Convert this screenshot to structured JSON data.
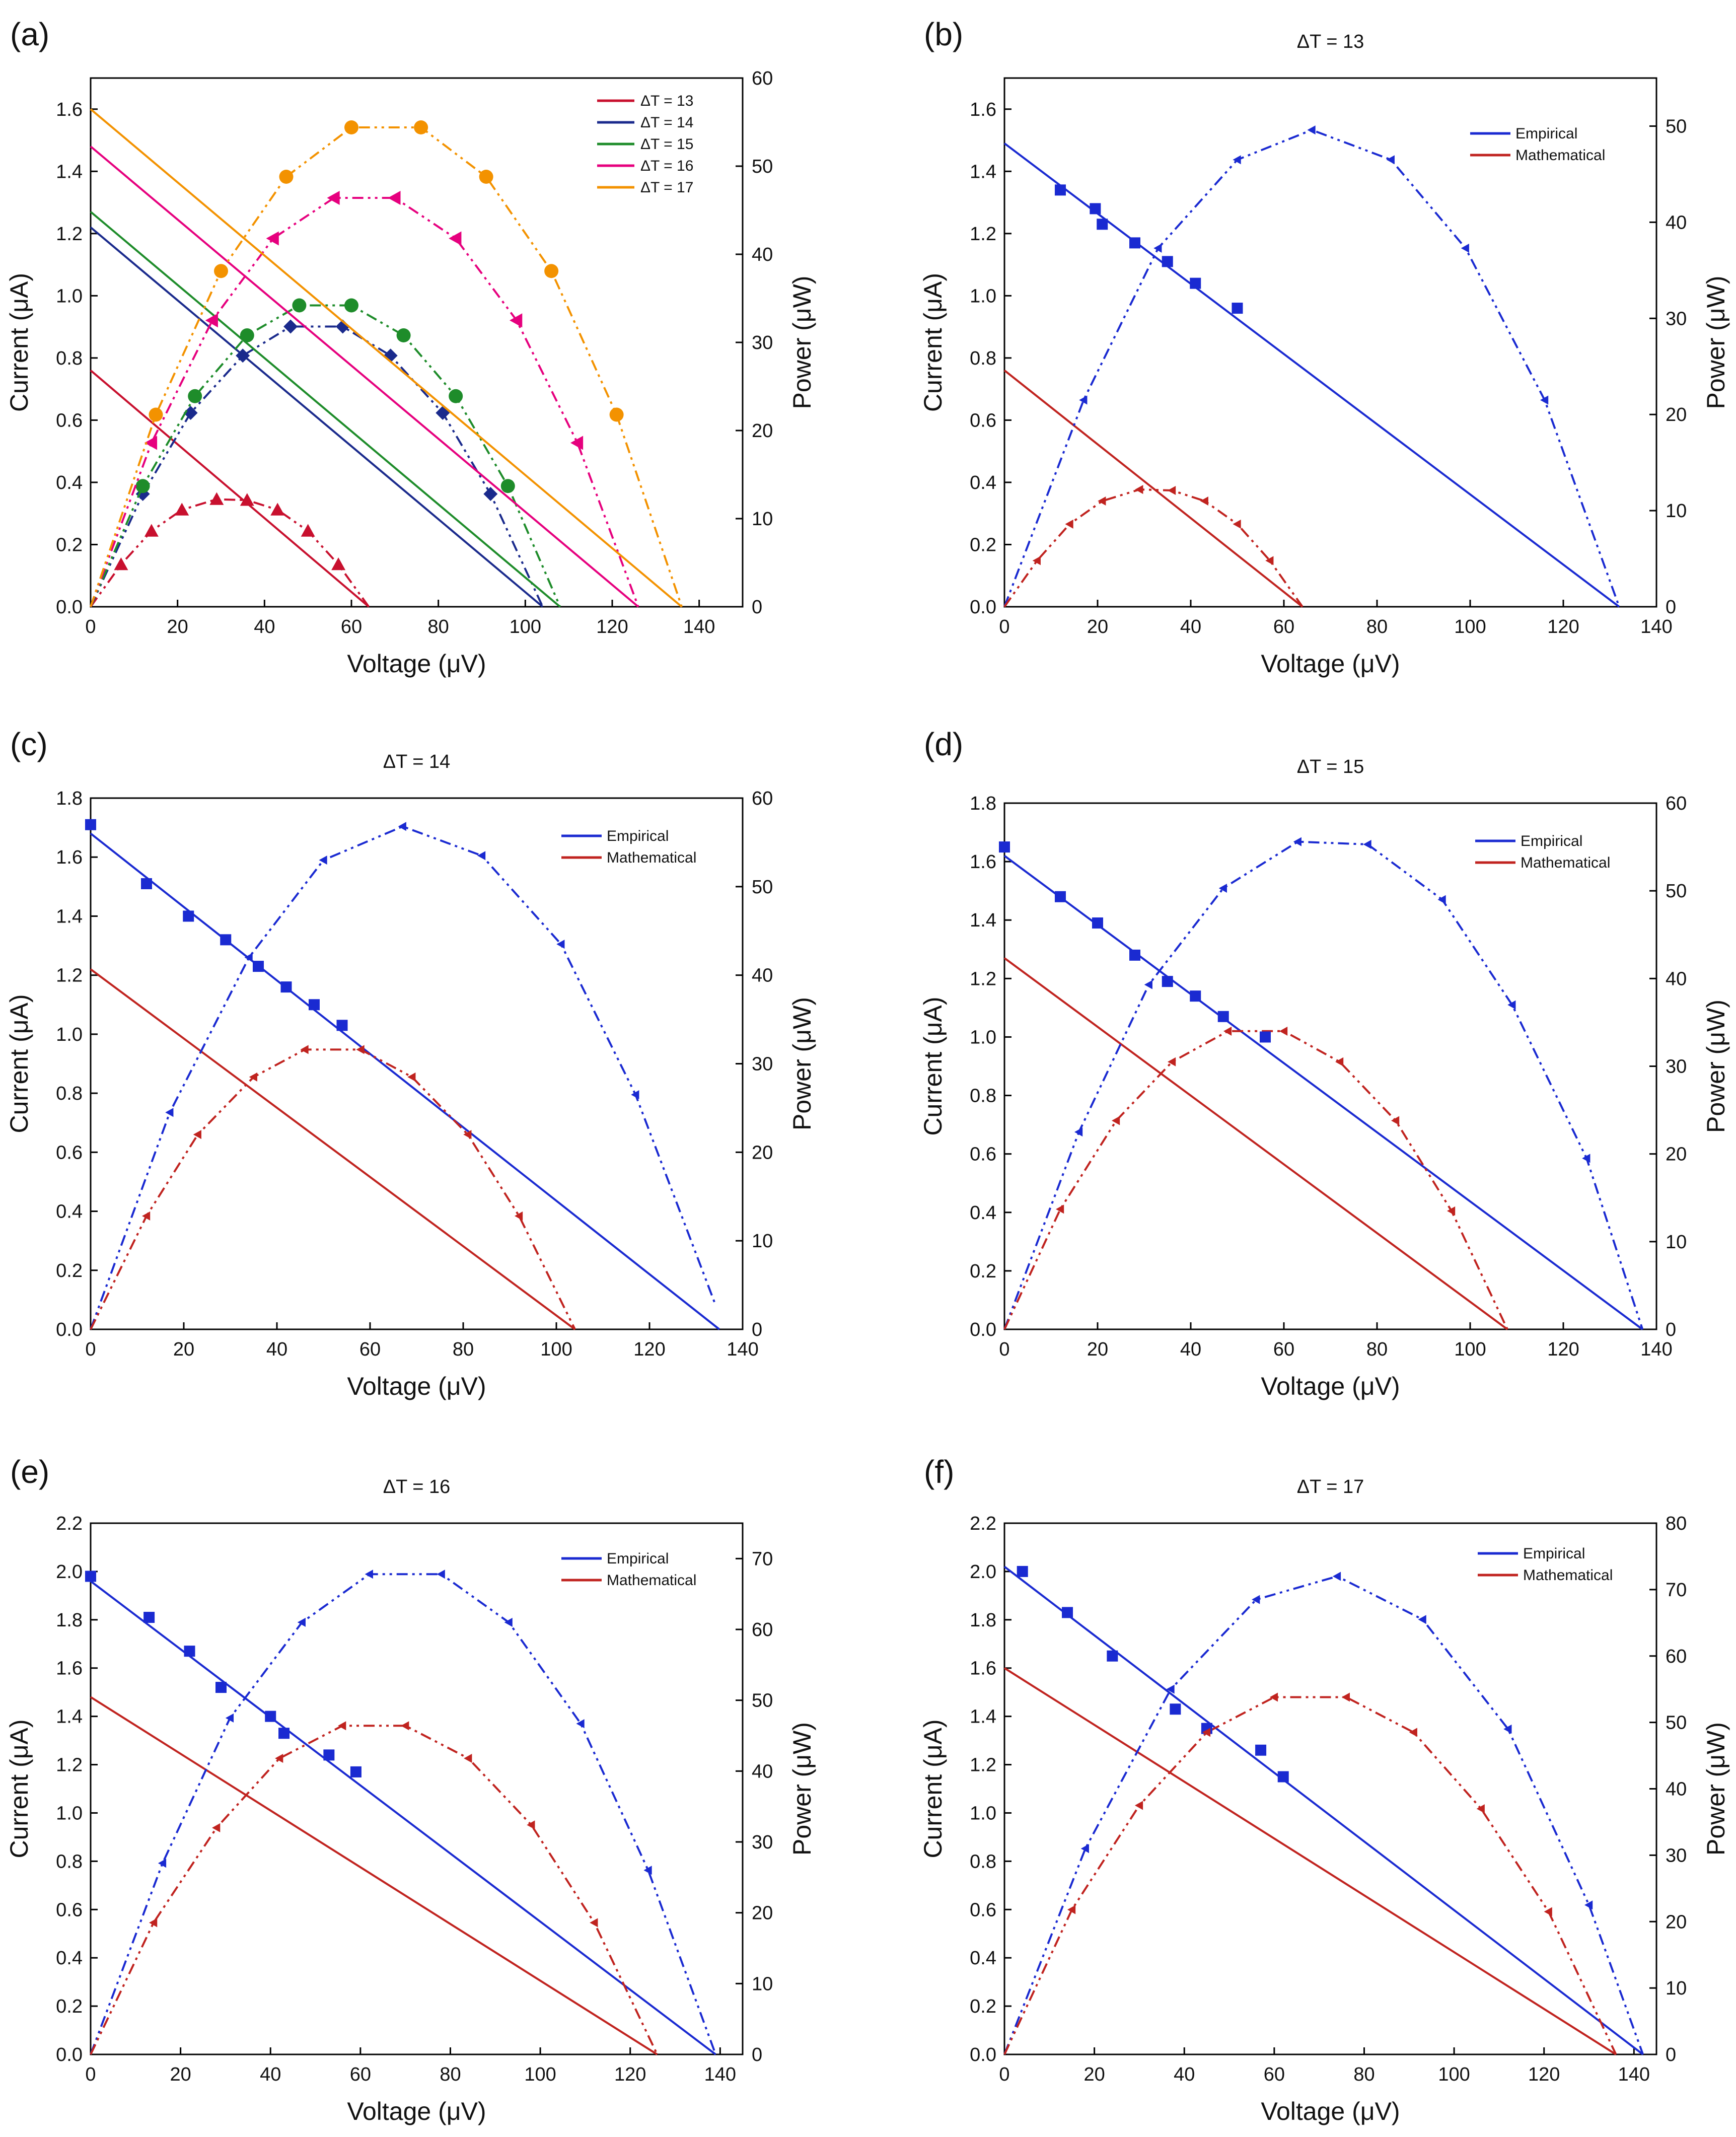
{
  "figure": {
    "panel_a": {
      "letter": "(a)",
      "xlabel": "Voltage (μV)",
      "ylabel_left": "Current (μA)",
      "ylabel_right": "Power (μW)",
      "xticks": [
        "0",
        "20",
        "40",
        "60",
        "80",
        "100",
        "120",
        "140"
      ],
      "yticks_left": [
        "0.0",
        "0.2",
        "0.4",
        "0.6",
        "0.8",
        "1.0",
        "1.2",
        "1.4",
        "1.6"
      ],
      "yticks_right": [
        "0",
        "10",
        "20",
        "30",
        "40",
        "50",
        "60"
      ],
      "legend": [
        "ΔT = 13",
        "ΔT = 14",
        "ΔT = 15",
        "ΔT = 16",
        "ΔT = 17"
      ]
    },
    "panel_b": {
      "letter": "(b)",
      "title": "ΔT = 13",
      "xlabel": "Voltage (μV)",
      "ylabel_left": "Current (μA)",
      "ylabel_right": "Power (μW)",
      "xticks": [
        "0",
        "20",
        "40",
        "60",
        "80",
        "100",
        "120",
        "140"
      ],
      "yticks_left": [
        "0.0",
        "0.2",
        "0.4",
        "0.6",
        "0.8",
        "1.0",
        "1.2",
        "1.4",
        "1.6"
      ],
      "yticks_right": [
        "0",
        "10",
        "20",
        "30",
        "40",
        "50"
      ],
      "legend": [
        "Empirical",
        "Mathematical"
      ]
    },
    "panel_c": {
      "letter": "(c)",
      "title": "ΔT = 14",
      "xlabel": "Voltage (μV)",
      "ylabel_left": "Current (μA)",
      "ylabel_right": "Power (μW)",
      "xticks": [
        "0",
        "20",
        "40",
        "60",
        "80",
        "100",
        "120",
        "140"
      ],
      "yticks_left": [
        "0.0",
        "0.2",
        "0.4",
        "0.6",
        "0.8",
        "1.0",
        "1.2",
        "1.4",
        "1.6",
        "1.8"
      ],
      "yticks_right": [
        "0",
        "10",
        "20",
        "30",
        "40",
        "50",
        "60"
      ],
      "legend": [
        "Empirical",
        "Mathematical"
      ]
    },
    "panel_d": {
      "letter": "(d)",
      "title": "ΔT = 15",
      "xlabel": "Voltage (μV)",
      "ylabel_left": "Current (μA)",
      "ylabel_right": "Power (μW)",
      "xticks": [
        "0",
        "20",
        "40",
        "60",
        "80",
        "100",
        "120",
        "140"
      ],
      "yticks_left": [
        "0.0",
        "0.2",
        "0.4",
        "0.6",
        "0.8",
        "1.0",
        "1.2",
        "1.4",
        "1.6",
        "1.8"
      ],
      "yticks_right": [
        "0",
        "10",
        "20",
        "30",
        "40",
        "50",
        "60"
      ],
      "legend": [
        "Empirical",
        "Mathematical"
      ]
    },
    "panel_e": {
      "letter": "(e)",
      "title": "ΔT = 16",
      "xlabel": "Voltage (μV)",
      "ylabel_left": "Current (μA)",
      "ylabel_right": "Power (μW)",
      "xticks": [
        "0",
        "20",
        "40",
        "60",
        "80",
        "100",
        "120",
        "140"
      ],
      "yticks_left": [
        "0.0",
        "0.2",
        "0.4",
        "0.6",
        "0.8",
        "1.0",
        "1.2",
        "1.4",
        "1.6",
        "1.8",
        "2.0",
        "2.2"
      ],
      "yticks_right": [
        "0",
        "10",
        "20",
        "30",
        "40",
        "50",
        "60",
        "70"
      ],
      "legend": [
        "Empirical",
        "Mathematical"
      ]
    },
    "panel_f": {
      "letter": "(f)",
      "title": "ΔT = 17",
      "xlabel": "Voltage (μV)",
      "ylabel_left": "Current (μA)",
      "ylabel_right": "Power (μW)",
      "xticks": [
        "0",
        "20",
        "40",
        "60",
        "80",
        "100",
        "120",
        "140"
      ],
      "yticks_left": [
        "0.0",
        "0.2",
        "0.4",
        "0.6",
        "0.8",
        "1.0",
        "1.2",
        "1.4",
        "1.6",
        "1.8",
        "2.0",
        "2.2"
      ],
      "yticks_right": [
        "0",
        "10",
        "20",
        "30",
        "40",
        "50",
        "60",
        "70",
        "80"
      ],
      "legend": [
        "Empirical",
        "Mathematical"
      ]
    }
  },
  "chart_data": [
    {
      "panel": "a",
      "type": "line",
      "xlim": [
        0,
        150
      ],
      "ylim": [
        0,
        1.7
      ],
      "y2lim": [
        0,
        60
      ],
      "series": [
        {
          "name": "ΔT = 13",
          "color": "#c8102e",
          "current_line": [
            [
              0,
              0.76
            ],
            [
              64,
              0
            ]
          ],
          "power": [
            [
              0,
              0
            ],
            [
              7,
              4.8
            ],
            [
              14,
              8.6
            ],
            [
              21,
              11
            ],
            [
              29,
              12.2
            ],
            [
              36,
              12.1
            ],
            [
              43,
              11
            ],
            [
              50,
              8.6
            ],
            [
              57,
              4.8
            ],
            [
              64,
              0
            ]
          ]
        },
        {
          "name": "ΔT = 14",
          "color": "#1a2a8c",
          "current_line": [
            [
              0,
              1.22
            ],
            [
              104,
              0
            ]
          ],
          "power": [
            [
              0,
              0
            ],
            [
              12,
              12.8
            ],
            [
              23,
              22
            ],
            [
              35,
              28.5
            ],
            [
              46,
              31.8
            ],
            [
              58,
              31.8
            ],
            [
              69,
              28.5
            ],
            [
              81,
              22
            ],
            [
              92,
              12.8
            ],
            [
              104,
              0
            ]
          ]
        },
        {
          "name": "ΔT = 15",
          "color": "#1e8c2a",
          "current_line": [
            [
              0,
              1.27
            ],
            [
              108,
              0
            ]
          ],
          "power": [
            [
              0,
              0
            ],
            [
              12,
              13.7
            ],
            [
              24,
              23.9
            ],
            [
              36,
              30.8
            ],
            [
              48,
              34.2
            ],
            [
              60,
              34.2
            ],
            [
              72,
              30.8
            ],
            [
              84,
              23.9
            ],
            [
              96,
              13.7
            ],
            [
              108,
              0
            ]
          ]
        },
        {
          "name": "ΔT = 16",
          "color": "#e6007e",
          "current_line": [
            [
              0,
              1.48
            ],
            [
              126,
              0
            ]
          ],
          "power": [
            [
              0,
              0
            ],
            [
              14,
              18.6
            ],
            [
              28,
              32.5
            ],
            [
              42,
              41.8
            ],
            [
              56,
              46.4
            ],
            [
              70,
              46.4
            ],
            [
              84,
              41.8
            ],
            [
              98,
              32.5
            ],
            [
              112,
              18.6
            ],
            [
              126,
              0
            ]
          ]
        },
        {
          "name": "ΔT = 17",
          "color": "#f39200",
          "current_line": [
            [
              0,
              1.6
            ],
            [
              136,
              0
            ]
          ],
          "power": [
            [
              0,
              0
            ],
            [
              15,
              21.8
            ],
            [
              30,
              38.1
            ],
            [
              45,
              48.8
            ],
            [
              60,
              54.4
            ],
            [
              76,
              54.4
            ],
            [
              91,
              48.8
            ],
            [
              106,
              38.1
            ],
            [
              121,
              21.8
            ],
            [
              136,
              0
            ]
          ]
        }
      ]
    },
    {
      "panel": "b",
      "type": "line",
      "xlim": [
        0,
        140
      ],
      "ylim": [
        0,
        1.7
      ],
      "y2lim": [
        0,
        55
      ],
      "empirical_points": [
        [
          12,
          1.34
        ],
        [
          19.5,
          1.28
        ],
        [
          21,
          1.23
        ],
        [
          28,
          1.17
        ],
        [
          35,
          1.11
        ],
        [
          41,
          1.04
        ],
        [
          50,
          0.96
        ]
      ],
      "empirical_line": [
        [
          0,
          1.49
        ],
        [
          132,
          0
        ]
      ],
      "mathematical_line": [
        [
          0,
          0.76
        ],
        [
          64,
          0
        ]
      ],
      "empirical_power": [
        [
          0,
          0
        ],
        [
          17,
          21.5
        ],
        [
          33,
          37.3
        ],
        [
          50,
          46.5
        ],
        [
          66,
          49.6
        ],
        [
          83,
          46.5
        ],
        [
          99,
          37.3
        ],
        [
          116,
          21.5
        ],
        [
          132,
          0
        ]
      ],
      "mathematical_power": [
        [
          0,
          0
        ],
        [
          7,
          4.8
        ],
        [
          14,
          8.6
        ],
        [
          21,
          11
        ],
        [
          29,
          12.2
        ],
        [
          36,
          12.1
        ],
        [
          43,
          11
        ],
        [
          50,
          8.6
        ],
        [
          57,
          4.8
        ],
        [
          64,
          0
        ]
      ]
    },
    {
      "panel": "c",
      "type": "line",
      "xlim": [
        0,
        140
      ],
      "ylim": [
        0,
        1.8
      ],
      "y2lim": [
        0,
        60
      ],
      "empirical_points": [
        [
          0,
          1.71
        ],
        [
          12,
          1.51
        ],
        [
          21,
          1.4
        ],
        [
          29,
          1.32
        ],
        [
          36,
          1.23
        ],
        [
          42,
          1.16
        ],
        [
          48,
          1.1
        ],
        [
          54,
          1.03
        ]
      ],
      "empirical_line": [
        [
          0,
          1.68
        ],
        [
          135,
          0
        ]
      ],
      "mathematical_line": [
        [
          0,
          1.22
        ],
        [
          104,
          0
        ]
      ],
      "empirical_power": [
        [
          0,
          0
        ],
        [
          17,
          24.5
        ],
        [
          34,
          42
        ],
        [
          50,
          53
        ],
        [
          67,
          56.8
        ],
        [
          84,
          53.5
        ],
        [
          101,
          43.5
        ],
        [
          117,
          26.5
        ],
        [
          134,
          3
        ]
      ],
      "mathematical_power": [
        [
          0,
          0
        ],
        [
          12,
          12.8
        ],
        [
          23,
          22
        ],
        [
          35,
          28.5
        ],
        [
          46,
          31.6
        ],
        [
          58,
          31.6
        ],
        [
          69,
          28.5
        ],
        [
          81,
          22
        ],
        [
          92,
          12.8
        ],
        [
          104,
          0
        ]
      ]
    },
    {
      "panel": "d",
      "type": "line",
      "xlim": [
        0,
        140
      ],
      "ylim": [
        0,
        1.8
      ],
      "y2lim": [
        0,
        60
      ],
      "empirical_points": [
        [
          0,
          1.65
        ],
        [
          12,
          1.48
        ],
        [
          20,
          1.39
        ],
        [
          28,
          1.28
        ],
        [
          35,
          1.19
        ],
        [
          41,
          1.14
        ],
        [
          47,
          1.07
        ],
        [
          56,
          1.0
        ]
      ],
      "empirical_line": [
        [
          0,
          1.62
        ],
        [
          137,
          0
        ]
      ],
      "mathematical_line": [
        [
          0,
          1.27
        ],
        [
          108,
          0
        ]
      ],
      "empirical_power": [
        [
          0,
          0
        ],
        [
          16,
          22.5
        ],
        [
          31,
          39.3
        ],
        [
          47,
          50.3
        ],
        [
          63,
          55.6
        ],
        [
          78,
          55.3
        ],
        [
          94,
          49
        ],
        [
          109,
          37
        ],
        [
          125,
          19.5
        ],
        [
          137,
          0
        ]
      ],
      "mathematical_power": [
        [
          0,
          0
        ],
        [
          12,
          13.7
        ],
        [
          24,
          23.8
        ],
        [
          36,
          30.5
        ],
        [
          48,
          34
        ],
        [
          60,
          34
        ],
        [
          72,
          30.5
        ],
        [
          84,
          23.8
        ],
        [
          96,
          13.5
        ],
        [
          108,
          0
        ]
      ]
    },
    {
      "panel": "e",
      "type": "line",
      "xlim": [
        0,
        145
      ],
      "ylim": [
        0,
        2.2
      ],
      "y2lim": [
        0,
        75
      ],
      "empirical_points": [
        [
          0,
          1.98
        ],
        [
          13,
          1.81
        ],
        [
          22,
          1.67
        ],
        [
          29,
          1.52
        ],
        [
          40,
          1.4
        ],
        [
          43,
          1.33
        ],
        [
          53,
          1.24
        ],
        [
          59,
          1.17
        ]
      ],
      "empirical_line": [
        [
          0,
          1.96
        ],
        [
          139,
          0
        ]
      ],
      "mathematical_line": [
        [
          0,
          1.48
        ],
        [
          126,
          0
        ]
      ],
      "empirical_power": [
        [
          0,
          0
        ],
        [
          16,
          27
        ],
        [
          31,
          47.5
        ],
        [
          47,
          61
        ],
        [
          62,
          67.8
        ],
        [
          78,
          67.8
        ],
        [
          93,
          61
        ],
        [
          109,
          46.7
        ],
        [
          124,
          26
        ],
        [
          139,
          0
        ]
      ],
      "mathematical_power": [
        [
          0,
          0
        ],
        [
          14,
          18.6
        ],
        [
          28,
          32
        ],
        [
          42,
          41.8
        ],
        [
          56,
          46.4
        ],
        [
          70,
          46.4
        ],
        [
          84,
          41.8
        ],
        [
          98,
          32.4
        ],
        [
          112,
          18.6
        ],
        [
          126,
          0
        ]
      ]
    },
    {
      "panel": "f",
      "type": "line",
      "xlim": [
        0,
        145
      ],
      "ylim": [
        0,
        2.2
      ],
      "y2lim": [
        0,
        80
      ],
      "empirical_points": [
        [
          4,
          2.0
        ],
        [
          14,
          1.83
        ],
        [
          24,
          1.65
        ],
        [
          38,
          1.43
        ],
        [
          45,
          1.35
        ],
        [
          57,
          1.26
        ],
        [
          62,
          1.15
        ]
      ],
      "empirical_line": [
        [
          0,
          2.02
        ],
        [
          142,
          0
        ]
      ],
      "mathematical_line": [
        [
          0,
          1.6
        ],
        [
          136,
          0
        ]
      ],
      "empirical_power": [
        [
          0,
          0
        ],
        [
          18,
          31
        ],
        [
          37,
          55
        ],
        [
          56,
          68.5
        ],
        [
          74,
          72
        ],
        [
          93,
          65.5
        ],
        [
          112,
          49
        ],
        [
          130,
          22.5
        ],
        [
          142,
          0
        ]
      ],
      "mathematical_power": [
        [
          0,
          0
        ],
        [
          15,
          21.8
        ],
        [
          30,
          37.5
        ],
        [
          45,
          48.5
        ],
        [
          60,
          53.8
        ],
        [
          76,
          53.8
        ],
        [
          91,
          48.5
        ],
        [
          106,
          37
        ],
        [
          121,
          21.5
        ],
        [
          136,
          0
        ]
      ]
    }
  ]
}
